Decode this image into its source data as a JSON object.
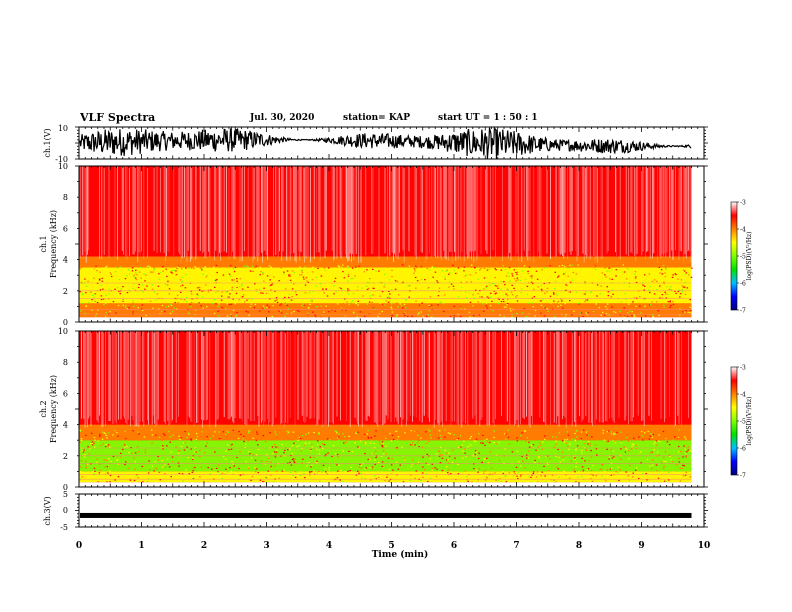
{
  "header": {
    "title": "VLF Spectra",
    "date": "Jul. 30, 2020",
    "station": "station= KAP",
    "start": "start  UT =   1 : 50 : 1"
  },
  "chart_data": [
    {
      "type": "line",
      "name": "ch1-waveform",
      "ylabel": "ch.1(V)",
      "ylim": [
        -10,
        10
      ],
      "yticks": [
        "10",
        "-10"
      ],
      "xlim": [
        0,
        10
      ]
    },
    {
      "type": "heatmap",
      "name": "ch1-spectrogram",
      "ylabel_top": "ch.1",
      "ylabel": "Frequency (kHz)",
      "ylim": [
        0,
        10
      ],
      "yticks": [
        "0",
        "2",
        "4",
        "6",
        "8",
        "10"
      ],
      "xlim": [
        0,
        9.8
      ],
      "bands": [
        {
          "f_min": 0.3,
          "f_max": 1.2,
          "log_psd": -4.2
        },
        {
          "f_min": 1.2,
          "f_max": 3.5,
          "log_psd": -4.6
        },
        {
          "f_min": 3.5,
          "f_max": 4.2,
          "log_psd": -4.1
        },
        {
          "f_min": 4.2,
          "f_max": 10,
          "log_psd": -3.6
        }
      ]
    },
    {
      "type": "heatmap",
      "name": "ch2-spectrogram",
      "ylabel_top": "ch.2",
      "ylabel": "Frequency (kHz)",
      "ylim": [
        0,
        10
      ],
      "yticks": [
        "0",
        "2",
        "4",
        "6",
        "8",
        "10"
      ],
      "xlim": [
        0,
        9.8
      ],
      "bands": [
        {
          "f_min": 0.3,
          "f_max": 1.0,
          "log_psd": -4.3
        },
        {
          "f_min": 1.0,
          "f_max": 3.0,
          "log_psd": -4.9
        },
        {
          "f_min": 3.0,
          "f_max": 4.0,
          "log_psd": -4.1
        },
        {
          "f_min": 4.0,
          "f_max": 10,
          "log_psd": -3.6
        }
      ]
    },
    {
      "type": "line",
      "name": "ch3-waveform",
      "ylabel": "ch.3(V)",
      "ylim": [
        -5,
        5
      ],
      "yticks": [
        "5",
        "0",
        "-5"
      ],
      "level": -1.5,
      "xlim": [
        0,
        9.8
      ]
    }
  ],
  "x_axis": {
    "label": "Time (min)",
    "ticks": [
      "0",
      "1",
      "2",
      "3",
      "4",
      "5",
      "6",
      "7",
      "8",
      "9",
      "10"
    ],
    "range": [
      0,
      10
    ]
  },
  "colorbar": {
    "label": "log(PSD)(V²/Hz)",
    "ticks": [
      "-3",
      "-4",
      "-5",
      "-6",
      "-7"
    ],
    "range": [
      -7,
      -3
    ],
    "colors": [
      "#000080",
      "#0000ff",
      "#00c0ff",
      "#00e000",
      "#80ff00",
      "#ffff00",
      "#ff8000",
      "#ff0000",
      "#ffffff"
    ]
  }
}
